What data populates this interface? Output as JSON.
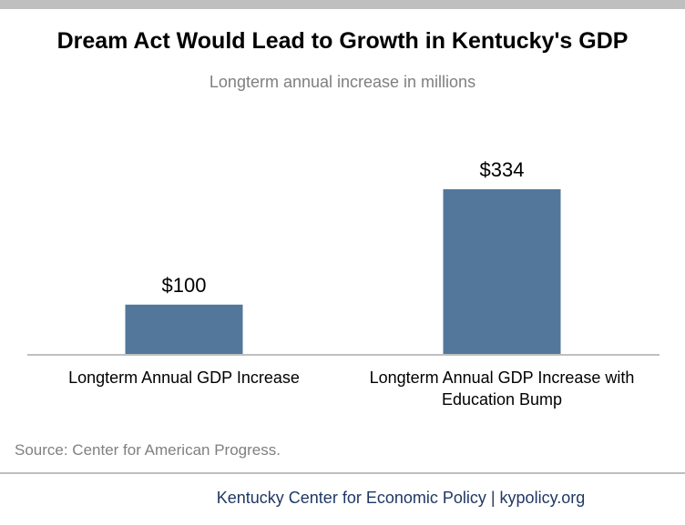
{
  "header": {
    "title": "Dream Act Would Lead to Growth in Kentucky's GDP",
    "subtitle": "Longterm annual increase in millions"
  },
  "chart_data": {
    "type": "bar",
    "title": "Dream Act Would Lead to Growth in Kentucky's GDP",
    "subtitle": "Longterm annual increase in millions",
    "categories": [
      [
        "Longterm Annual GDP Increase"
      ],
      [
        "Longterm Annual GDP Increase with",
        "Education Bump"
      ]
    ],
    "values": [
      100,
      334
    ],
    "data_labels": [
      "$100",
      "$334"
    ],
    "ylim": [
      0,
      400
    ],
    "grid": false,
    "legend": "none",
    "bar_color": "#52779b",
    "axis_color": "#bfbfbf"
  },
  "footer": {
    "source": "Source: Center for American Progress.",
    "credit": "Kentucky Center for Economic Policy | kypolicy.org"
  }
}
